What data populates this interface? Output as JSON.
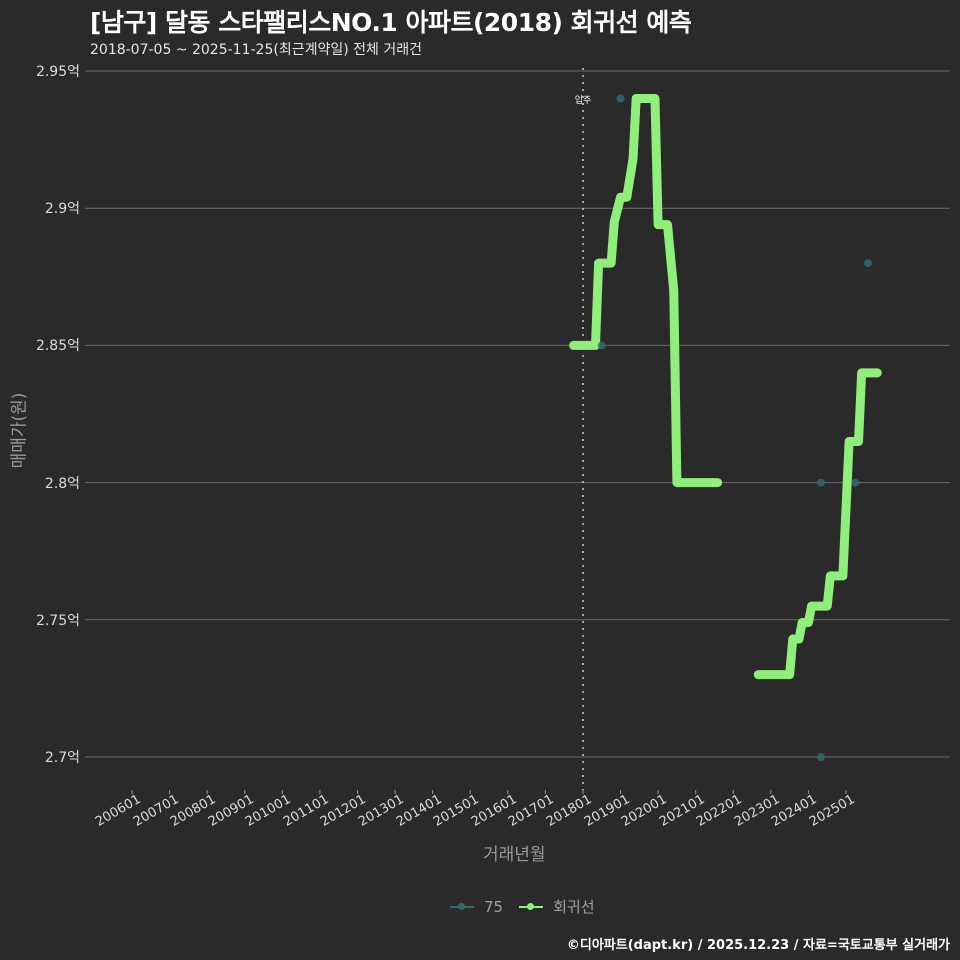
{
  "title": "[남구] 달동 스타팰리스NO.1 아파트(2018) 회귀선 예측",
  "subtitle": "2018-07-05 ~ 2025-11-25(최근계약일) 전체 거래건",
  "footer": "©디아파트(dapt.kr) / 2025.12.23 / 자료=국토교통부 실거래가",
  "colors": {
    "background": "#2b2a2b",
    "regression": "#90ee7a",
    "series75": "#2f6b6b",
    "grid": "#6a6a6a"
  },
  "chart_data": {
    "type": "line",
    "title": "[남구] 달동 스타팰리스NO.1 아파트(2018) 회귀선 예측",
    "subtitle": "2018-07-05 ~ 2025-11-25(최근계약일) 전체 거래건",
    "xlabel": "거래년월",
    "ylabel": "매매가(원)",
    "x_ticks": [
      "200601",
      "200701",
      "200801",
      "200901",
      "201001",
      "201101",
      "201201",
      "201301",
      "201401",
      "201501",
      "201601",
      "201701",
      "201801",
      "201901",
      "202001",
      "202101",
      "202201",
      "202301",
      "202401",
      "202501"
    ],
    "y_ticks": [
      "2.7억",
      "2.75억",
      "2.8억",
      "2.85억",
      "2.9억",
      "2.95억"
    ],
    "ylim": [
      2.69,
      2.95
    ],
    "grid": true,
    "legend_position": "bottom",
    "annotations": [
      {
        "label": "입주",
        "x": "201801",
        "type": "vertical-dotted-line"
      }
    ],
    "series": [
      {
        "name": "75",
        "type": "scatter",
        "points": [
          {
            "x": "2018-07",
            "y": 2.85
          },
          {
            "x": "2019-01",
            "y": 2.94
          },
          {
            "x": "2024-05",
            "y": 2.8
          },
          {
            "x": "2024-05",
            "y": 2.7
          },
          {
            "x": "2025-04",
            "y": 2.8
          },
          {
            "x": "2025-08",
            "y": 2.88
          }
        ]
      },
      {
        "name": "회귀선",
        "type": "step-line",
        "segments": [
          [
            {
              "x": "2017-10",
              "y": 2.85
            },
            {
              "x": "2018-05",
              "y": 2.85
            },
            {
              "x": "2018-06",
              "y": 2.88
            },
            {
              "x": "2018-10",
              "y": 2.88
            },
            {
              "x": "2018-11",
              "y": 2.895
            },
            {
              "x": "2019-01",
              "y": 2.904
            },
            {
              "x": "2019-03",
              "y": 2.904
            },
            {
              "x": "2019-05",
              "y": 2.918
            },
            {
              "x": "2019-06",
              "y": 2.94
            },
            {
              "x": "2019-12",
              "y": 2.94
            },
            {
              "x": "2020-01",
              "y": 2.894
            },
            {
              "x": "2020-04",
              "y": 2.894
            },
            {
              "x": "2020-06",
              "y": 2.87
            },
            {
              "x": "2020-07",
              "y": 2.8
            },
            {
              "x": "2021-08",
              "y": 2.8
            }
          ],
          [
            {
              "x": "2022-09",
              "y": 2.73
            },
            {
              "x": "2023-07",
              "y": 2.73
            },
            {
              "x": "2023-08",
              "y": 2.743
            },
            {
              "x": "2023-10",
              "y": 2.743
            },
            {
              "x": "2023-11",
              "y": 2.749
            },
            {
              "x": "2024-01",
              "y": 2.749
            },
            {
              "x": "2024-02",
              "y": 2.755
            },
            {
              "x": "2024-07",
              "y": 2.755
            },
            {
              "x": "2024-08",
              "y": 2.766
            },
            {
              "x": "2024-12",
              "y": 2.766
            },
            {
              "x": "2025-02",
              "y": 2.815
            },
            {
              "x": "2025-05",
              "y": 2.815
            },
            {
              "x": "2025-06",
              "y": 2.84
            },
            {
              "x": "2025-11",
              "y": 2.84
            }
          ]
        ]
      }
    ]
  },
  "legend": [
    {
      "label": "75",
      "color": "#2f6b6b"
    },
    {
      "label": "회귀선",
      "color": "#90ee7a"
    }
  ]
}
